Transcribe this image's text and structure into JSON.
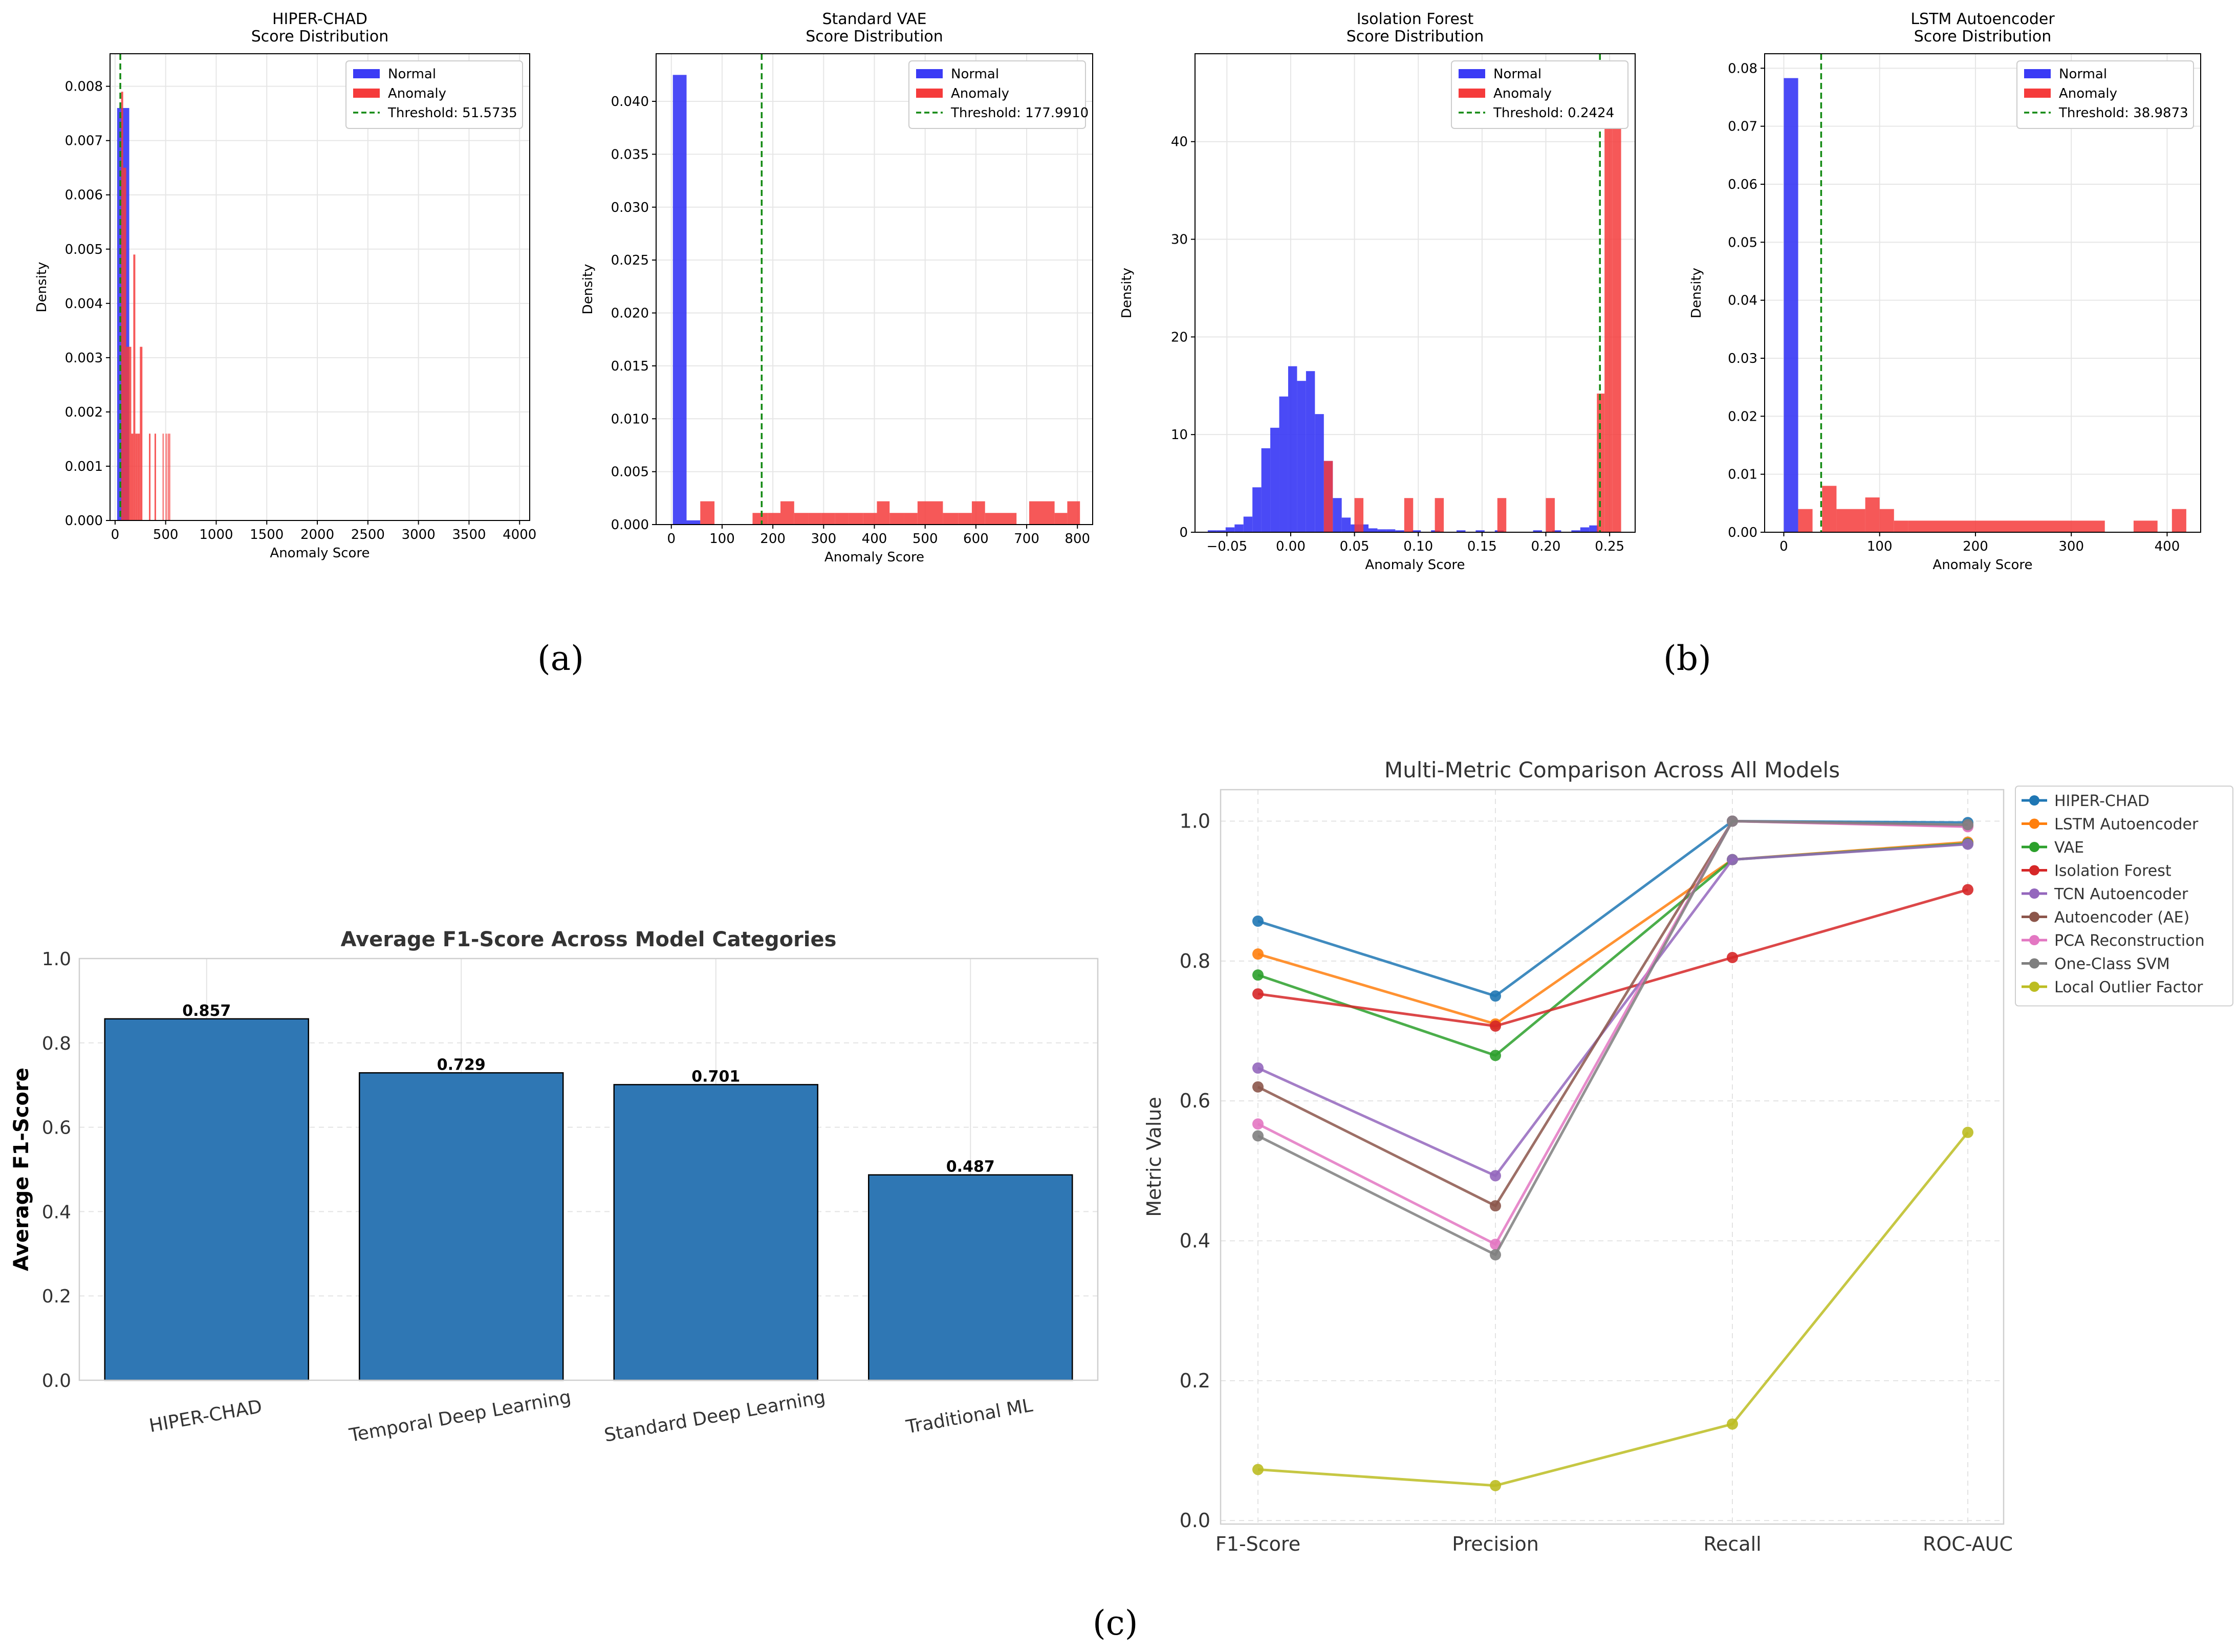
{
  "panel_labels": {
    "a": "(a)",
    "b": "(b)",
    "c": "(c)"
  },
  "colors": {
    "normal": "#3b3bf5",
    "anomaly": "#f53b3b",
    "threshold": "#138a13",
    "bar": "#2f77b4",
    "series": [
      "#1f77b4",
      "#ff7f0e",
      "#2ca02c",
      "#d62728",
      "#9467bd",
      "#8c564b",
      "#e377c2",
      "#7f7f7f",
      "#bcbd22"
    ]
  },
  "chart_data": [
    {
      "id": "hiper",
      "type": "histogram",
      "title": "HIPER-CHAD\nScore Distribution",
      "xlabel": "Anomaly Score",
      "ylabel": "Density",
      "xlim": [
        -50,
        4100
      ],
      "ylim": [
        0,
        0.0086
      ],
      "xticks": [
        0,
        500,
        1000,
        1500,
        2000,
        2500,
        3000,
        3500,
        4000
      ],
      "xtick_labels": [
        "0",
        "500",
        "1000",
        "1500",
        "2000",
        "2500",
        "3000",
        "3500",
        "4000"
      ],
      "yticks": [
        0,
        0.001,
        0.002,
        0.003,
        0.004,
        0.005,
        0.006,
        0.007,
        0.008
      ],
      "ytick_labels": [
        "0.000",
        "0.001",
        "0.002",
        "0.003",
        "0.004",
        "0.005",
        "0.006",
        "0.007",
        "0.008"
      ],
      "threshold": 51.5735,
      "legend": [
        "Normal",
        "Anomaly",
        "Threshold: 51.5735"
      ],
      "normal_bins": [
        [
          20,
          140,
          0.0076
        ]
      ],
      "anomaly_bins": [
        [
          60,
          80,
          0.0079
        ],
        [
          80,
          110,
          0.0065
        ],
        [
          110,
          140,
          0.0032
        ],
        [
          140,
          160,
          0.0032
        ],
        [
          160,
          180,
          0.0016
        ],
        [
          180,
          200,
          0.0049
        ],
        [
          200,
          220,
          0.0016
        ],
        [
          220,
          245,
          0.0016
        ],
        [
          245,
          270,
          0.0032
        ],
        [
          335,
          350,
          0.0016
        ],
        [
          390,
          405,
          0.0016
        ],
        [
          470,
          480,
          0.0016
        ],
        [
          500,
          510,
          0.0016
        ],
        [
          520,
          530,
          0.0016
        ],
        [
          535,
          545,
          0.0016
        ]
      ]
    },
    {
      "id": "vae",
      "type": "histogram",
      "title": "Standard VAE\nScore Distribution",
      "xlabel": "Anomaly Score",
      "ylabel": "Density",
      "xlim": [
        -30,
        830
      ],
      "ylim": [
        0,
        0.0445
      ],
      "xticks": [
        0,
        100,
        200,
        300,
        400,
        500,
        600,
        700,
        800
      ],
      "xtick_labels": [
        "0",
        "100",
        "200",
        "300",
        "400",
        "500",
        "600",
        "700",
        "800"
      ],
      "yticks": [
        0,
        0.005,
        0.01,
        0.015,
        0.02,
        0.025,
        0.03,
        0.035,
        0.04
      ],
      "ytick_labels": [
        "0.000",
        "0.005",
        "0.010",
        "0.015",
        "0.020",
        "0.025",
        "0.030",
        "0.035",
        "0.040"
      ],
      "threshold": 177.991,
      "legend": [
        "Normal",
        "Anomaly",
        "Threshold: 177.9910"
      ],
      "normal_bins": [
        [
          3,
          30,
          0.0425
        ],
        [
          30,
          57,
          0.0004
        ]
      ],
      "anomaly_bins": [
        [
          57,
          85,
          0.0022
        ],
        [
          160,
          190,
          0.0011
        ],
        [
          190,
          215,
          0.0011
        ],
        [
          215,
          242,
          0.0022
        ],
        [
          242,
          270,
          0.0011
        ],
        [
          270,
          295,
          0.0011
        ],
        [
          295,
          322,
          0.0011
        ],
        [
          322,
          350,
          0.0011
        ],
        [
          350,
          378,
          0.0011
        ],
        [
          378,
          405,
          0.0011
        ],
        [
          405,
          430,
          0.0022
        ],
        [
          430,
          458,
          0.0011
        ],
        [
          458,
          485,
          0.0011
        ],
        [
          485,
          535,
          0.0022
        ],
        [
          535,
          565,
          0.0011
        ],
        [
          565,
          592,
          0.0011
        ],
        [
          592,
          618,
          0.0022
        ],
        [
          618,
          680,
          0.0011
        ],
        [
          705,
          755,
          0.0022
        ],
        [
          755,
          780,
          0.0011
        ],
        [
          780,
          805,
          0.0022
        ]
      ]
    },
    {
      "id": "iforest",
      "type": "histogram",
      "title": "Isolation Forest\nScore Distribution",
      "xlabel": "Anomaly Score",
      "ylabel": "Density",
      "xlim": [
        -0.075,
        0.27
      ],
      "ylim": [
        0,
        49
      ],
      "xticks": [
        -0.05,
        0,
        0.05,
        0.1,
        0.15,
        0.2,
        0.25
      ],
      "xtick_labels": [
        "−0.05",
        "0.00",
        "0.05",
        "0.10",
        "0.15",
        "0.20",
        "0.25"
      ],
      "yticks": [
        0,
        10,
        20,
        30,
        40
      ],
      "ytick_labels": [
        "0",
        "10",
        "20",
        "30",
        "40"
      ],
      "threshold": 0.2424,
      "legend": [
        "Normal",
        "Anomaly",
        "Threshold: 0.2424"
      ],
      "normal_bins": [
        [
          -0.065,
          -0.058,
          0.2
        ],
        [
          -0.058,
          -0.051,
          0.2
        ],
        [
          -0.051,
          -0.044,
          0.5
        ],
        [
          -0.044,
          -0.037,
          0.8
        ],
        [
          -0.037,
          -0.03,
          1.6
        ],
        [
          -0.03,
          -0.023,
          4.6
        ],
        [
          -0.023,
          -0.016,
          8.6
        ],
        [
          -0.016,
          -0.009,
          10.7
        ],
        [
          -0.009,
          -0.002,
          13.9
        ],
        [
          -0.002,
          0.005,
          17.0
        ],
        [
          0.005,
          0.012,
          15.5
        ],
        [
          0.012,
          0.019,
          16.5
        ],
        [
          0.019,
          0.026,
          12.1
        ],
        [
          0.026,
          0.033,
          7.3
        ],
        [
          0.033,
          0.04,
          3.5
        ],
        [
          0.04,
          0.047,
          1.5
        ],
        [
          0.047,
          0.054,
          0.8
        ],
        [
          0.054,
          0.061,
          0.8
        ],
        [
          0.061,
          0.068,
          0.4
        ],
        [
          0.068,
          0.075,
          0.3
        ],
        [
          0.075,
          0.082,
          0.3
        ],
        [
          0.082,
          0.089,
          0.2
        ],
        [
          0.095,
          0.102,
          0.2
        ],
        [
          0.11,
          0.117,
          0.2
        ],
        [
          0.13,
          0.137,
          0.2
        ],
        [
          0.145,
          0.152,
          0.2
        ],
        [
          0.16,
          0.167,
          0.2
        ],
        [
          0.19,
          0.197,
          0.2
        ],
        [
          0.205,
          0.212,
          0.2
        ],
        [
          0.22,
          0.227,
          0.2
        ],
        [
          0.227,
          0.234,
          0.5
        ],
        [
          0.234,
          0.241,
          0.7
        ]
      ],
      "anomaly_bins": [
        [
          0.026,
          0.033,
          7.3
        ],
        [
          0.05,
          0.057,
          3.5
        ],
        [
          0.089,
          0.096,
          3.5
        ],
        [
          0.113,
          0.12,
          3.5
        ],
        [
          0.162,
          0.169,
          3.5
        ],
        [
          0.2,
          0.207,
          3.5
        ],
        [
          0.24,
          0.246,
          14.2
        ],
        [
          0.246,
          0.252,
          43.0
        ],
        [
          0.252,
          0.259,
          46.5
        ]
      ]
    },
    {
      "id": "lstm",
      "type": "histogram",
      "title": "LSTM Autoencoder\nScore Distribution",
      "xlabel": "Anomaly Score",
      "ylabel": "Density",
      "xlim": [
        -20,
        435
      ],
      "ylim": [
        0,
        0.0825
      ],
      "xticks": [
        0,
        100,
        200,
        300,
        400
      ],
      "xtick_labels": [
        "0",
        "100",
        "200",
        "300",
        "400"
      ],
      "yticks": [
        0,
        0.01,
        0.02,
        0.03,
        0.04,
        0.05,
        0.06,
        0.07,
        0.08
      ],
      "ytick_labels": [
        "0.00",
        "0.01",
        "0.02",
        "0.03",
        "0.04",
        "0.05",
        "0.06",
        "0.07",
        "0.08"
      ],
      "threshold": 38.9873,
      "legend": [
        "Normal",
        "Anomaly",
        "Threshold: 38.9873"
      ],
      "normal_bins": [
        [
          0,
          15,
          0.0783
        ]
      ],
      "anomaly_bins": [
        [
          15,
          30,
          0.004
        ],
        [
          40,
          55,
          0.008
        ],
        [
          55,
          85,
          0.004
        ],
        [
          85,
          100,
          0.006
        ],
        [
          100,
          115,
          0.004
        ],
        [
          115,
          130,
          0.002
        ],
        [
          130,
          335,
          0.002
        ],
        [
          365,
          390,
          0.002
        ],
        [
          405,
          420,
          0.004
        ]
      ]
    },
    {
      "id": "f1bar",
      "type": "bar",
      "title": "Average F1-Score Across Model Categories",
      "xlabel": "",
      "ylabel": "Average F1-Score",
      "ylim": [
        0,
        1.0
      ],
      "yticks": [
        0,
        0.2,
        0.4,
        0.6,
        0.8,
        1.0
      ],
      "ytick_labels": [
        "0.0",
        "0.2",
        "0.4",
        "0.6",
        "0.8",
        "1.0"
      ],
      "categories": [
        "HIPER-CHAD",
        "Temporal Deep Learning",
        "Standard Deep Learning",
        "Traditional ML"
      ],
      "values": [
        0.857,
        0.729,
        0.701,
        0.487
      ],
      "value_labels": [
        "0.857",
        "0.729",
        "0.701",
        "0.487"
      ]
    },
    {
      "id": "multi",
      "type": "line",
      "title": "Multi-Metric Comparison Across All Models",
      "xlabel": "",
      "ylabel": "Metric Value",
      "categories": [
        "F1-Score",
        "Precision",
        "Recall",
        "ROC-AUC"
      ],
      "ylim": [
        0,
        1.0
      ],
      "yticks": [
        0,
        0.2,
        0.4,
        0.6,
        0.8,
        1.0
      ],
      "ytick_labels": [
        "0.0",
        "0.2",
        "0.4",
        "0.6",
        "0.8",
        "1.0"
      ],
      "series": [
        {
          "name": "HIPER-CHAD",
          "values": [
            0.857,
            0.75,
            1.0,
            0.998
          ]
        },
        {
          "name": "LSTM Autoencoder",
          "values": [
            0.81,
            0.71,
            0.945,
            0.97
          ]
        },
        {
          "name": "VAE",
          "values": [
            0.78,
            0.665,
            0.945,
            0.968
          ]
        },
        {
          "name": "Isolation Forest",
          "values": [
            0.753,
            0.707,
            0.805,
            0.902
          ]
        },
        {
          "name": "TCN Autoencoder",
          "values": [
            0.647,
            0.493,
            0.945,
            0.967
          ]
        },
        {
          "name": "Autoencoder (AE)",
          "values": [
            0.62,
            0.45,
            1.0,
            0.993
          ]
        },
        {
          "name": "PCA Reconstruction",
          "values": [
            0.567,
            0.395,
            1.0,
            0.992
          ]
        },
        {
          "name": "One-Class SVM",
          "values": [
            0.55,
            0.38,
            1.0,
            0.995
          ]
        },
        {
          "name": "Local Outlier Factor",
          "values": [
            0.073,
            0.05,
            0.138,
            0.555
          ]
        }
      ]
    }
  ]
}
